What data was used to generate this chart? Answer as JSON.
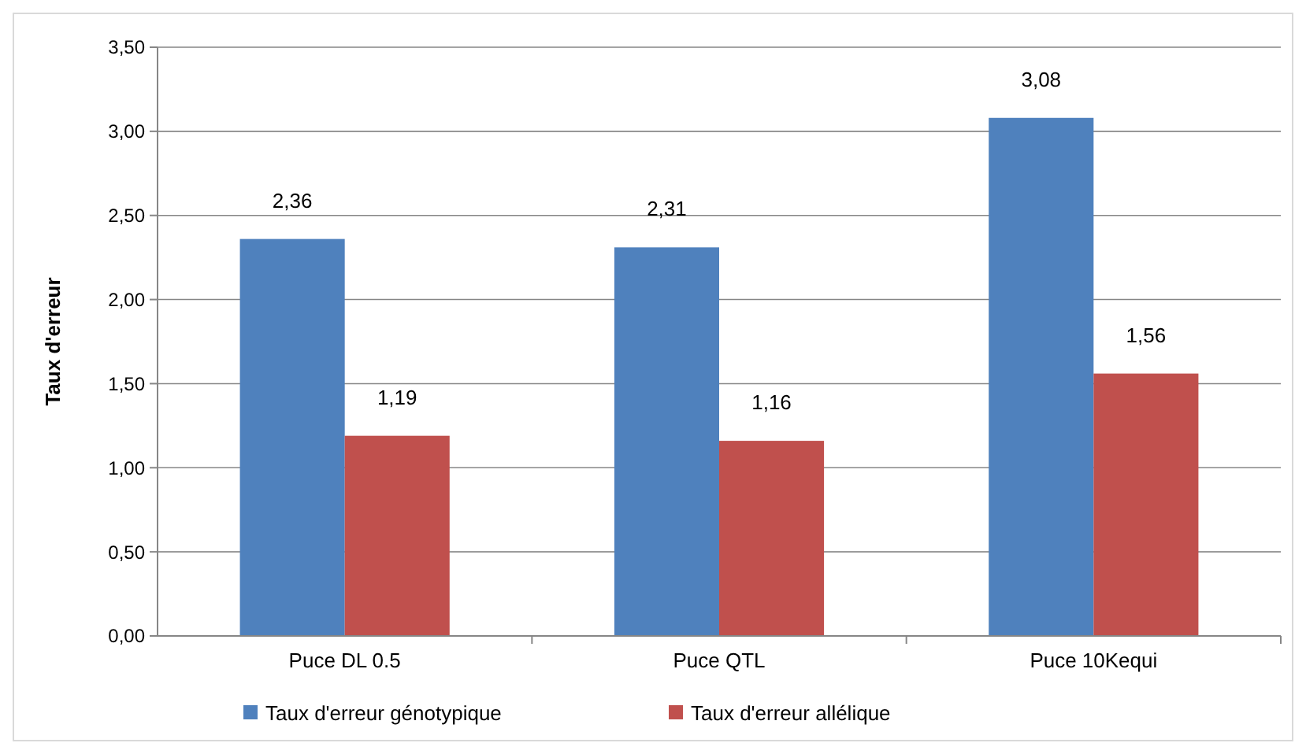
{
  "chart_data": {
    "type": "bar",
    "ylabel": "Taux d'erreur",
    "categories": [
      "Puce DL 0.5",
      "Puce QTL",
      "Puce 10Kequi"
    ],
    "series": [
      {
        "name": "Taux d'erreur génotypique",
        "color": "#4f81bd",
        "values": [
          2.36,
          2.31,
          3.08
        ],
        "value_labels": [
          "2,36",
          "2,31",
          "3,08"
        ]
      },
      {
        "name": "Taux d'erreur allélique",
        "color": "#c0504d",
        "values": [
          1.19,
          1.16,
          1.56
        ],
        "value_labels": [
          "1,19",
          "1,16",
          "1,56"
        ]
      }
    ],
    "ylim": [
      0,
      3.5
    ],
    "yticks": [
      {
        "value": 0,
        "label": "0,00"
      },
      {
        "value": 0.5,
        "label": "0,50"
      },
      {
        "value": 1,
        "label": "1,00"
      },
      {
        "value": 1.5,
        "label": "1,50"
      },
      {
        "value": 2,
        "label": "2,00"
      },
      {
        "value": 2.5,
        "label": "2,50"
      },
      {
        "value": 3,
        "label": "3,00"
      },
      {
        "value": 3.5,
        "label": "3,50"
      }
    ],
    "grid": "y",
    "legend": "bottom"
  }
}
